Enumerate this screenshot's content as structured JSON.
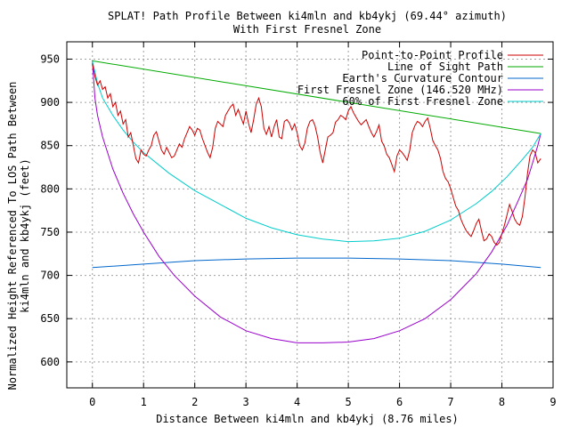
{
  "chart_data": {
    "type": "line",
    "title": "SPLAT! Path Profile Between ki4mln and kb4ykj (69.44° azimuth)",
    "subtitle": "With First Fresnel Zone",
    "xlabel": "Distance Between ki4mln and kb4ykj (8.76 miles)",
    "ylabel_line1": "Normalized Height Referenced To LOS Path Between",
    "ylabel_line2": "ki4mln and kb4ykj (feet)",
    "xlim": [
      -0.5,
      9
    ],
    "ylim": [
      570,
      970
    ],
    "xticks": [
      0,
      1,
      2,
      3,
      4,
      5,
      6,
      7,
      8,
      9
    ],
    "yticks": [
      600,
      650,
      700,
      750,
      800,
      850,
      900,
      950
    ],
    "grid": true,
    "legend_position": "top-right",
    "series": [
      {
        "name": "Point-to-Point Profile",
        "color": "#cc0000",
        "x": [
          0,
          0.05,
          0.1,
          0.15,
          0.2,
          0.25,
          0.3,
          0.35,
          0.4,
          0.45,
          0.5,
          0.55,
          0.6,
          0.65,
          0.7,
          0.75,
          0.8,
          0.85,
          0.9,
          0.95,
          1.0,
          1.05,
          1.1,
          1.15,
          1.2,
          1.25,
          1.3,
          1.35,
          1.4,
          1.45,
          1.5,
          1.55,
          1.6,
          1.65,
          1.7,
          1.75,
          1.8,
          1.85,
          1.9,
          1.95,
          2.0,
          2.05,
          2.1,
          2.15,
          2.2,
          2.25,
          2.3,
          2.35,
          2.4,
          2.45,
          2.5,
          2.55,
          2.6,
          2.65,
          2.7,
          2.75,
          2.8,
          2.85,
          2.9,
          2.95,
          3.0,
          3.05,
          3.1,
          3.15,
          3.2,
          3.25,
          3.3,
          3.35,
          3.4,
          3.45,
          3.5,
          3.55,
          3.6,
          3.65,
          3.7,
          3.75,
          3.8,
          3.85,
          3.9,
          3.95,
          4.0,
          4.05,
          4.1,
          4.15,
          4.2,
          4.25,
          4.3,
          4.35,
          4.4,
          4.45,
          4.5,
          4.55,
          4.6,
          4.65,
          4.7,
          4.75,
          4.8,
          4.85,
          4.9,
          4.95,
          5.0,
          5.05,
          5.1,
          5.15,
          5.2,
          5.25,
          5.3,
          5.35,
          5.4,
          5.45,
          5.5,
          5.55,
          5.6,
          5.65,
          5.7,
          5.75,
          5.8,
          5.85,
          5.9,
          5.95,
          6.0,
          6.05,
          6.1,
          6.15,
          6.2,
          6.25,
          6.3,
          6.35,
          6.4,
          6.45,
          6.5,
          6.55,
          6.6,
          6.65,
          6.7,
          6.75,
          6.8,
          6.85,
          6.9,
          6.95,
          7.0,
          7.05,
          7.1,
          7.15,
          7.2,
          7.25,
          7.3,
          7.35,
          7.4,
          7.45,
          7.5,
          7.55,
          7.6,
          7.65,
          7.7,
          7.75,
          7.8,
          7.85,
          7.9,
          7.95,
          8.0,
          8.05,
          8.1,
          8.15,
          8.2,
          8.25,
          8.3,
          8.35,
          8.4,
          8.45,
          8.5,
          8.55,
          8.6,
          8.65,
          8.7,
          8.76
        ],
        "y": [
          945,
          930,
          920,
          925,
          915,
          918,
          905,
          910,
          895,
          900,
          885,
          890,
          875,
          880,
          860,
          865,
          850,
          835,
          830,
          845,
          840,
          838,
          845,
          850,
          862,
          866,
          855,
          845,
          840,
          848,
          842,
          836,
          838,
          845,
          852,
          848,
          858,
          865,
          872,
          868,
          862,
          870,
          868,
          858,
          850,
          842,
          836,
          848,
          870,
          878,
          875,
          872,
          885,
          890,
          895,
          898,
          885,
          892,
          883,
          875,
          890,
          876,
          865,
          880,
          898,
          905,
          895,
          870,
          863,
          872,
          860,
          872,
          880,
          860,
          858,
          878,
          880,
          876,
          868,
          875,
          865,
          850,
          845,
          853,
          870,
          878,
          880,
          873,
          860,
          842,
          830,
          845,
          860,
          862,
          865,
          877,
          880,
          885,
          883,
          880,
          890,
          895,
          888,
          883,
          878,
          874,
          877,
          880,
          872,
          865,
          860,
          866,
          874,
          855,
          850,
          840,
          836,
          828,
          820,
          838,
          845,
          842,
          838,
          833,
          845,
          865,
          873,
          878,
          876,
          872,
          878,
          882,
          870,
          856,
          850,
          845,
          835,
          820,
          812,
          808,
          800,
          790,
          780,
          775,
          765,
          758,
          752,
          748,
          745,
          752,
          760,
          765,
          752,
          740,
          742,
          748,
          745,
          738,
          735,
          738,
          748,
          758,
          770,
          782,
          774,
          765,
          760,
          758,
          768,
          790,
          818,
          838,
          845,
          842,
          830,
          835
        ],
        "legend_label": "Point-to-Point Profile"
      },
      {
        "name": "Line of Sight Path",
        "color": "#00aa00",
        "x": [
          0,
          8.76
        ],
        "y": [
          948,
          864
        ]
      },
      {
        "name": "Earth's Curvature Contour",
        "color": "#0066cc",
        "x": [
          0,
          1,
          2,
          3,
          4,
          5,
          6,
          7,
          8,
          8.76
        ],
        "y": [
          709,
          713,
          717,
          719,
          720,
          720,
          719,
          717,
          713,
          709
        ]
      },
      {
        "name": "First Fresnel Zone (146.520 MHz)",
        "color": "#9900cc",
        "x": [
          0,
          0.05,
          0.1,
          0.2,
          0.4,
          0.6,
          0.8,
          1.0,
          1.3,
          1.6,
          2.0,
          2.5,
          3.0,
          3.5,
          4.0,
          4.5,
          5.0,
          5.5,
          6.0,
          6.5,
          7.0,
          7.5,
          7.8,
          8.1,
          8.3,
          8.5,
          8.6,
          8.7,
          8.76
        ],
        "y": [
          948,
          905,
          885,
          860,
          823,
          795,
          771,
          750,
          722,
          700,
          676,
          652,
          636,
          627,
          622,
          622,
          623,
          627,
          636,
          650,
          672,
          702,
          727,
          758,
          784,
          811,
          830,
          850,
          864
        ]
      },
      {
        "name": "60% of First Fresnel Zone",
        "color": "#00cccc",
        "x": [
          0,
          0.1,
          0.2,
          0.4,
          0.6,
          0.8,
          1.0,
          1.5,
          2.0,
          2.5,
          3.0,
          3.5,
          4.0,
          4.5,
          5.0,
          5.5,
          6.0,
          6.5,
          7.0,
          7.5,
          7.8,
          8.1,
          8.4,
          8.6,
          8.76
        ],
        "y": [
          948,
          922,
          905,
          885,
          868,
          854,
          842,
          818,
          798,
          782,
          766,
          755,
          747,
          742,
          739,
          740,
          743,
          751,
          764,
          783,
          797,
          814,
          834,
          848,
          864
        ]
      }
    ]
  }
}
